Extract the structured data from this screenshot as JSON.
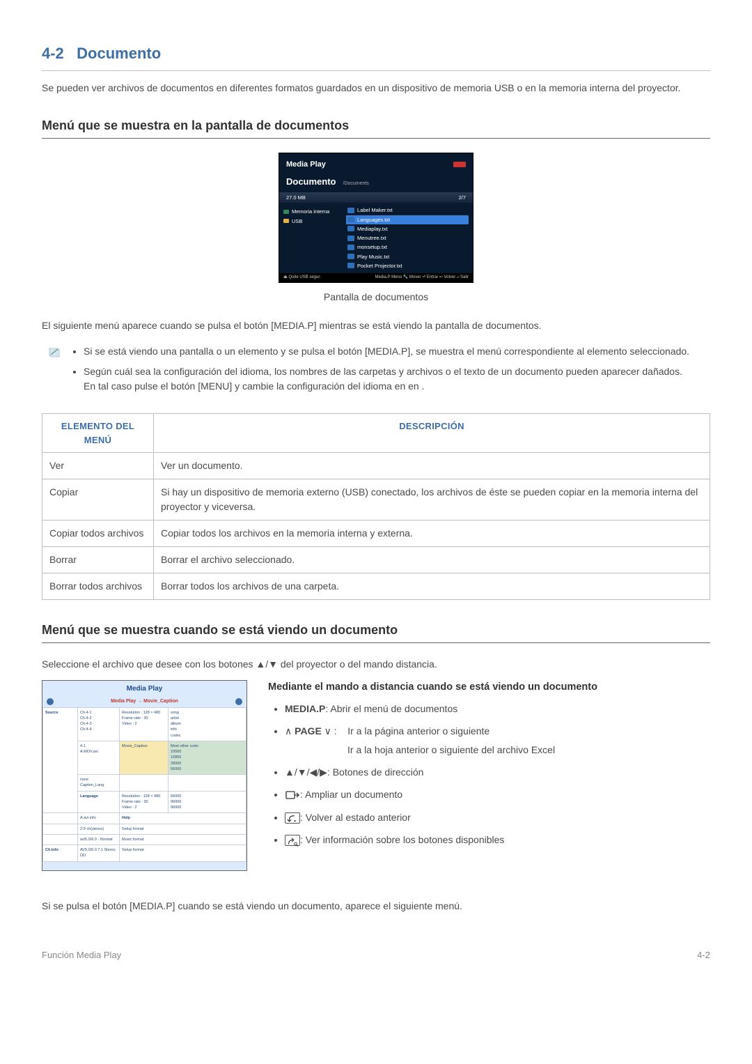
{
  "section": {
    "number": "4-2",
    "title": "Documento"
  },
  "intro": "Se pueden ver archivos de documentos en diferentes formatos guardados en un dispositivo de memoria USB o en la memoria interna del proyector.",
  "h2_1": "Menú que se muestra en la pantalla de documentos",
  "mp": {
    "brand": "Media Play",
    "title": "Documento",
    "crumb": "/Documents",
    "size": "27.0 MB",
    "page": "2/7",
    "side": [
      {
        "label": "Memoria interna",
        "color": "#2e8b57"
      },
      {
        "label": "USB",
        "color": "#e3b341"
      }
    ],
    "files": [
      {
        "label": "Label Maker.txt",
        "color": "#2e6fbb",
        "sel": false
      },
      {
        "label": "Languages.txt",
        "color": "#2e6fbb",
        "sel": true
      },
      {
        "label": "Mediaplay.txt",
        "color": "#2e6fbb",
        "sel": false
      },
      {
        "label": "Menutree.txt",
        "color": "#2e6fbb",
        "sel": false
      },
      {
        "label": "monsetup.txt",
        "color": "#2e6fbb",
        "sel": false
      },
      {
        "label": "Play Music.txt",
        "color": "#2e6fbb",
        "sel": false
      },
      {
        "label": "Pocket Projector.txt",
        "color": "#2e6fbb",
        "sel": false
      }
    ],
    "footer_left": "⏏ Quite USB segur.",
    "footer_right": "Media.P Menú  🔧 Mover ⏎ Entrar ↩ Volver ⤶ Salir"
  },
  "caption1": "Pantalla de documentos",
  "after_caption": "El siguiente menú aparece cuando se pulsa el botón [MEDIA.P] mientras se está viendo la pantalla de documentos.",
  "notes": [
    "Si se está viendo una pantalla o un elemento y se pulsa el botón [MEDIA.P], se muestra el menú correspondiente al elemento seleccionado.",
    "Según cuál sea la configuración del idioma, los nombres de las carpetas y archivos o el texto de un documento pueden aparecer dañados.\nEn tal caso pulse el botón [MENU] y cambie la configuración del idioma en <Idioma> en <Opción>."
  ],
  "table": {
    "head": [
      "Elemento del menú",
      "Descripción"
    ],
    "rows": [
      [
        "Ver",
        "Ver un documento."
      ],
      [
        "Copiar",
        "Si hay un dispositivo de memoria externo (USB) conectado, los archivos de éste se pueden copiar en la memoria interna del proyector y viceversa."
      ],
      [
        "Copiar todos archivos",
        "Copiar todos los archivos en la memoria interna y externa."
      ],
      [
        "Borrar",
        "Borrar el archivo seleccionado."
      ],
      [
        "Borrar todos archivos",
        "Borrar todos los archivos de una carpeta."
      ]
    ]
  },
  "h2_2": "Menú que se muestra cuando se está viendo un documento",
  "select_line": "Seleccione el archivo que desee con los botones ▲/▼ del proyector o del mando distancia.",
  "docview": {
    "title": "Media Play",
    "subtitle": "Media Play → Movie_Caption"
  },
  "remote": {
    "title": "Mediante el mando a distancia cuando se está viendo un documento",
    "items": {
      "mediap_label": "MEDIA.P",
      "mediap_desc": ": Abrir el menú de documentos",
      "page_prefix": "∧ ",
      "page_label": "PAGE",
      "page_suffix": " ∨ :",
      "page_desc1": "Ir a la página anterior o siguiente",
      "page_desc2": "Ir a la hoja anterior o siguiente del archivo Excel",
      "arrows": "▲/▼/◀/▶: Botones de dirección",
      "zoom": ": Ampliar un documento",
      "back": ": Volver al estado anterior",
      "info": ": Ver información sobre los botones disponibles"
    }
  },
  "closing": "Si se pulsa el botón [MEDIA.P] cuando se está viendo un documento, aparece el siguiente menú.",
  "footer": {
    "left": "Función Media Play",
    "right": "4-2"
  },
  "colors": {
    "heading": "#3e6ea6",
    "rule": "#bfbfbf",
    "mp_bg": "#0a1a2e",
    "mp_sel": "#3a7fdc"
  }
}
